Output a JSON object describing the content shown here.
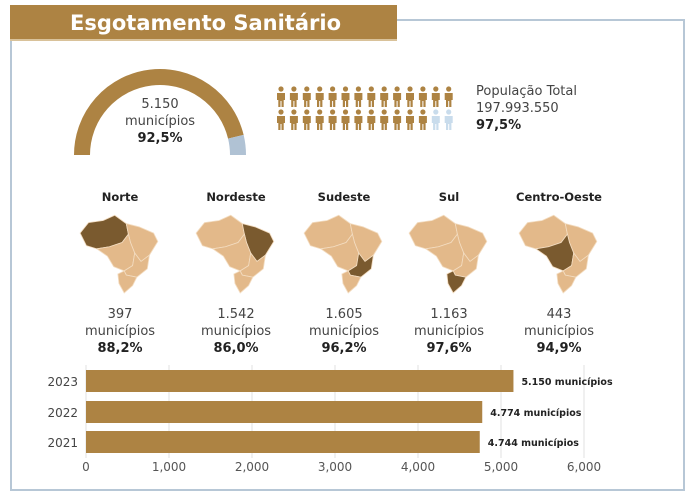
{
  "title": "Esgotamento Sanitário",
  "gauge": {
    "count": "5.150",
    "unit": "municípios",
    "percent": "92,5%",
    "fraction": 0.925,
    "fill_color": "#AD8343",
    "rest_color": "#b0c2d4"
  },
  "population": {
    "label": "População Total",
    "value": "197.993.550",
    "percent": "97,5%",
    "icons_total": 28,
    "icons_filled": 26
  },
  "regions": [
    {
      "name": "Norte",
      "count": "397",
      "unit": "municípios",
      "percent": "88,2%"
    },
    {
      "name": "Nordeste",
      "count": "1.542",
      "unit": "municípios",
      "percent": "86,0%"
    },
    {
      "name": "Sudeste",
      "count": "1.605",
      "unit": "municípios",
      "percent": "96,2%"
    },
    {
      "name": "Sul",
      "count": "1.163",
      "unit": "municípios",
      "percent": "97,6%"
    },
    {
      "name": "Centro-Oeste",
      "count": "443",
      "unit": "municípios",
      "percent": "94,9%"
    }
  ],
  "chart_data": {
    "type": "bar",
    "orientation": "horizontal",
    "categories": [
      "2023",
      "2022",
      "2021"
    ],
    "values": [
      5150,
      4774,
      4744
    ],
    "data_labels": [
      "5.150 municípios",
      "4.774 municípios",
      "4.744 municípios"
    ],
    "xlim": [
      0,
      6000
    ],
    "xticks": [
      "0",
      "1,000",
      "2,000",
      "3,000",
      "4,000",
      "5,000",
      "6,000"
    ],
    "grid": true,
    "bar_color": "#AD8343"
  }
}
